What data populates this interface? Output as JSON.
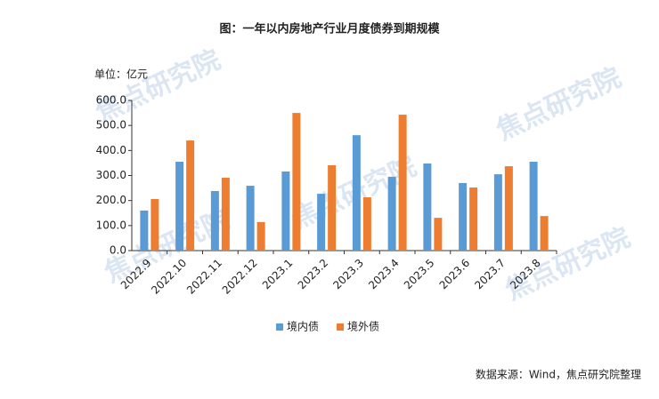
{
  "chart_data": {
    "type": "bar",
    "title": "图：一年以内房地产行业月度债券到期规模",
    "unit_label": "单位：亿元",
    "source": "数据来源：Wind，焦点研究院整理",
    "watermark": "焦点研究院",
    "categories": [
      "2022.9",
      "2022.10",
      "2022.11",
      "2022.12",
      "2023.1",
      "2023.2",
      "2023.3",
      "2023.4",
      "2023.5",
      "2023.6",
      "2023.7",
      "2023.8"
    ],
    "series": [
      {
        "name": "境内债",
        "color": "#5b9bd5",
        "values": [
          160,
          355,
          238,
          259,
          316,
          227,
          461,
          295,
          348,
          270,
          305,
          355
        ]
      },
      {
        "name": "境外债",
        "color": "#ed7d31",
        "values": [
          206,
          440,
          291,
          114,
          550,
          341,
          213,
          543,
          131,
          252,
          337,
          138
        ]
      }
    ],
    "ylim": [
      0,
      600
    ],
    "yticks": [
      {
        "value": 0,
        "label": "0.0"
      },
      {
        "value": 100,
        "label": "100.0"
      },
      {
        "value": 200,
        "label": "200.0"
      },
      {
        "value": 300,
        "label": "300.0"
      },
      {
        "value": 400,
        "label": "400.0"
      },
      {
        "value": 500,
        "label": "500.0"
      },
      {
        "value": 600,
        "label": "600.0"
      }
    ],
    "grid": false,
    "legend": "bottom"
  }
}
